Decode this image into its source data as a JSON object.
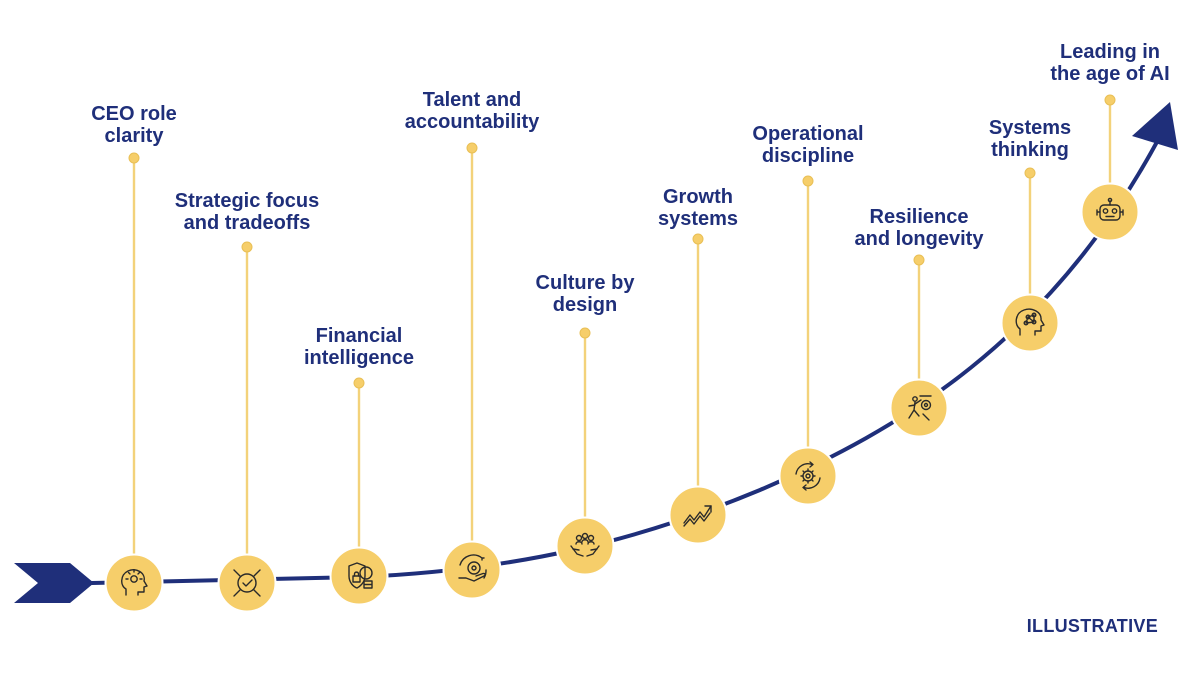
{
  "colors": {
    "navy": "#1f2f7a",
    "gold": "#f6ce6a",
    "gold_line": "#f3d27a",
    "icon": "#2a2a2a"
  },
  "annotation": "ILLUSTRATIVE",
  "milestones": [
    {
      "line1": "CEO role",
      "line2": "clarity",
      "icon": "idea-head-icon"
    },
    {
      "line1": "Strategic focus",
      "line2": "and tradeoffs",
      "icon": "focus-check-icon"
    },
    {
      "line1": "Financial",
      "line2": "intelligence",
      "icon": "shield-coins-icon"
    },
    {
      "line1": "Talent and",
      "line2": "accountability",
      "icon": "hand-gear-icon"
    },
    {
      "line1": "Culture by",
      "line2": "design",
      "icon": "people-hands-icon"
    },
    {
      "line1": "Growth",
      "line2": "systems",
      "icon": "growth-arrow-icon"
    },
    {
      "line1": "Operational",
      "line2": "discipline",
      "icon": "gear-cycle-icon"
    },
    {
      "line1": "Resilience",
      "line2": "and longevity",
      "icon": "climbing-icon"
    },
    {
      "line1": "Systems",
      "line2": "thinking",
      "icon": "brain-network-icon"
    },
    {
      "line1": "Leading in",
      "line2": "the age of AI",
      "icon": "robot-icon"
    }
  ]
}
